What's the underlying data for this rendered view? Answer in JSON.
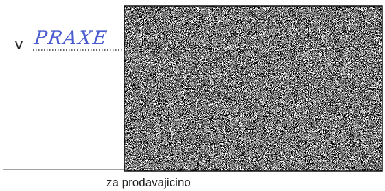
{
  "document": {
    "prefix": "v",
    "handwritten_entry": "PRAXE",
    "signature_caption": "za prodavajicino"
  }
}
